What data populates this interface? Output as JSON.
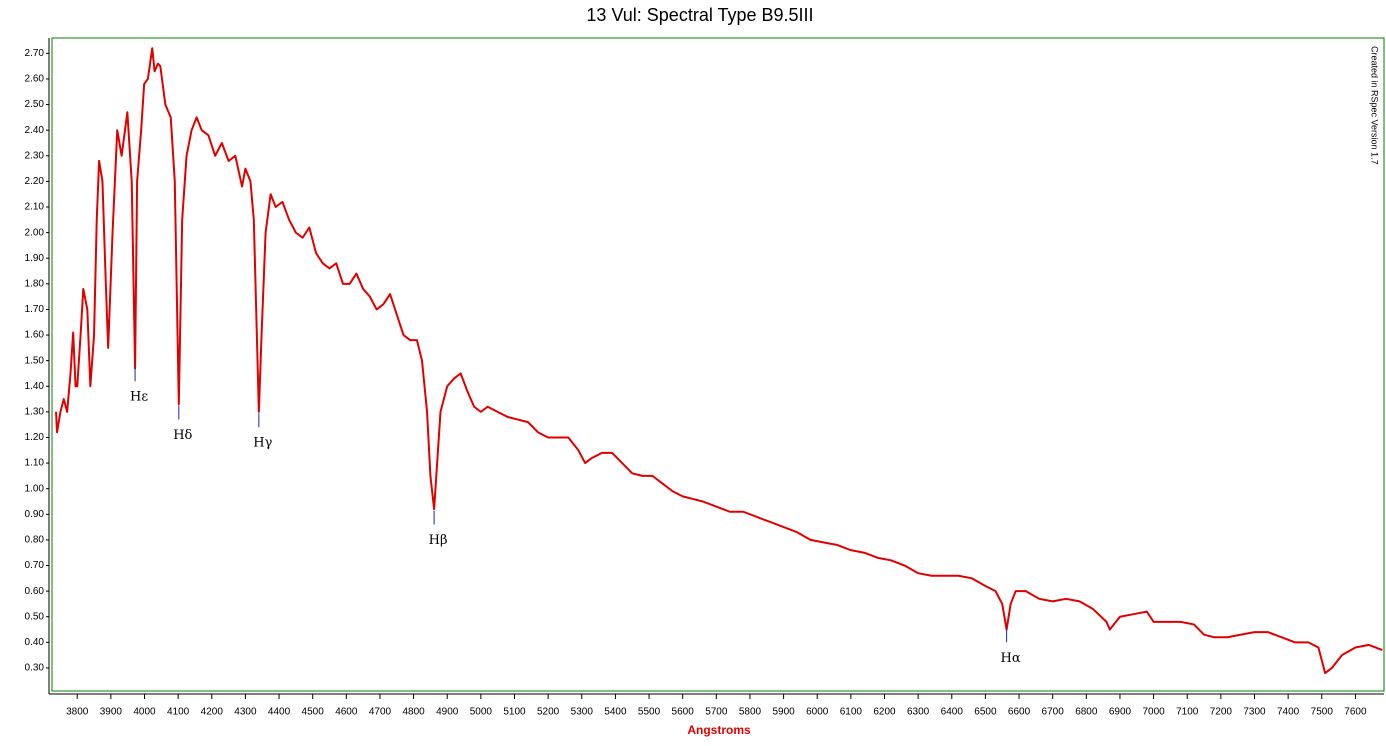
{
  "chart_data": {
    "type": "line",
    "title": "13 Vul: Spectral Type B9.5III",
    "x_label": "Angstroms",
    "watermark": "Created in RSpec Version 1.7",
    "color": "#e00000",
    "grid": false,
    "xlim": [
      3725,
      7685
    ],
    "ylim": [
      0.21,
      2.76
    ],
    "xticks": [
      3800,
      3900,
      4000,
      4100,
      4200,
      4300,
      4400,
      4500,
      4600,
      4700,
      4800,
      4900,
      5000,
      5100,
      5200,
      5300,
      5400,
      5500,
      5600,
      5700,
      5800,
      5900,
      6000,
      6100,
      6200,
      6300,
      6400,
      6500,
      6600,
      6700,
      6800,
      6900,
      7000,
      7100,
      7200,
      7300,
      7400,
      7500,
      7600
    ],
    "yticks": [
      {
        "value": 0.3,
        "label": "0.30"
      },
      {
        "value": 0.4,
        "label": "0.40"
      },
      {
        "value": 0.5,
        "label": "0.50"
      },
      {
        "value": 0.6,
        "label": "0.60"
      },
      {
        "value": 0.7,
        "label": "0.70"
      },
      {
        "value": 0.8,
        "label": "0.80"
      },
      {
        "value": 0.9,
        "label": "0.90"
      },
      {
        "value": 1.0,
        "label": "1.00"
      },
      {
        "value": 1.1,
        "label": "1.10"
      },
      {
        "value": 1.2,
        "label": "1.20"
      },
      {
        "value": 1.3,
        "label": "1.30"
      },
      {
        "value": 1.4,
        "label": "1.40"
      },
      {
        "value": 1.5,
        "label": "1.50"
      },
      {
        "value": 1.6,
        "label": "1.60"
      },
      {
        "value": 1.7,
        "label": "1.70"
      },
      {
        "value": 1.8,
        "label": "1.80"
      },
      {
        "value": 1.9,
        "label": "1.90"
      },
      {
        "value": 2.0,
        "label": "2.00"
      },
      {
        "value": 2.1,
        "label": "2.10"
      },
      {
        "value": 2.2,
        "label": "2.20"
      },
      {
        "value": 2.3,
        "label": "2.30"
      },
      {
        "value": 2.4,
        "label": "2.40"
      },
      {
        "value": 2.5,
        "label": "2.50"
      },
      {
        "value": 2.6,
        "label": "2.60"
      },
      {
        "value": 2.7,
        "label": "2.70"
      }
    ],
    "x": [
      3737,
      3740,
      3750,
      3760,
      3770,
      3780,
      3788,
      3795,
      3800,
      3810,
      3818,
      3830,
      3839,
      3850,
      3858,
      3865,
      3875,
      3885,
      3892,
      3905,
      3919,
      3932,
      3942,
      3949,
      3962,
      3972,
      3978,
      3990,
      3999,
      4010,
      4023,
      4030,
      4040,
      4047,
      4062,
      4078,
      4090,
      4102,
      4112,
      4125,
      4140,
      4155,
      4170,
      4190,
      4210,
      4230,
      4250,
      4270,
      4290,
      4300,
      4315,
      4325,
      4334,
      4340,
      4348,
      4360,
      4375,
      4390,
      4410,
      4430,
      4450,
      4470,
      4490,
      4510,
      4530,
      4550,
      4570,
      4590,
      4610,
      4630,
      4650,
      4670,
      4690,
      4710,
      4730,
      4750,
      4770,
      4790,
      4810,
      4825,
      4840,
      4850,
      4861,
      4870,
      4880,
      4900,
      4920,
      4940,
      4960,
      4980,
      5000,
      5020,
      5050,
      5080,
      5110,
      5140,
      5170,
      5200,
      5230,
      5260,
      5290,
      5310,
      5330,
      5360,
      5390,
      5420,
      5450,
      5480,
      5510,
      5540,
      5570,
      5600,
      5630,
      5660,
      5700,
      5740,
      5780,
      5820,
      5860,
      5900,
      5940,
      5980,
      6020,
      6060,
      6100,
      6140,
      6180,
      6220,
      6260,
      6300,
      6340,
      6380,
      6420,
      6460,
      6500,
      6530,
      6550,
      6563,
      6575,
      6590,
      6620,
      6660,
      6700,
      6740,
      6780,
      6820,
      6860,
      6870,
      6900,
      6940,
      6980,
      7000,
      7040,
      7080,
      7120,
      7150,
      7180,
      7220,
      7260,
      7300,
      7340,
      7380,
      7420,
      7460,
      7490,
      7510,
      7530,
      7560,
      7600,
      7640,
      7680
    ],
    "values": [
      1.3,
      1.22,
      1.3,
      1.35,
      1.3,
      1.45,
      1.61,
      1.4,
      1.4,
      1.6,
      1.78,
      1.7,
      1.4,
      1.6,
      2.05,
      2.28,
      2.2,
      1.8,
      1.55,
      2.0,
      2.4,
      2.3,
      2.4,
      2.47,
      2.2,
      1.47,
      2.2,
      2.4,
      2.58,
      2.6,
      2.72,
      2.63,
      2.66,
      2.65,
      2.5,
      2.45,
      2.2,
      1.33,
      2.05,
      2.3,
      2.4,
      2.45,
      2.4,
      2.38,
      2.3,
      2.35,
      2.28,
      2.3,
      2.18,
      2.25,
      2.2,
      2.05,
      1.6,
      1.3,
      1.6,
      2.0,
      2.15,
      2.1,
      2.12,
      2.05,
      2.0,
      1.98,
      2.02,
      1.92,
      1.88,
      1.86,
      1.88,
      1.8,
      1.8,
      1.84,
      1.78,
      1.75,
      1.7,
      1.72,
      1.76,
      1.68,
      1.6,
      1.58,
      1.58,
      1.5,
      1.3,
      1.05,
      0.92,
      1.1,
      1.3,
      1.4,
      1.43,
      1.45,
      1.38,
      1.32,
      1.3,
      1.32,
      1.3,
      1.28,
      1.27,
      1.26,
      1.22,
      1.2,
      1.2,
      1.2,
      1.15,
      1.1,
      1.12,
      1.14,
      1.14,
      1.1,
      1.06,
      1.05,
      1.05,
      1.02,
      0.99,
      0.97,
      0.96,
      0.95,
      0.93,
      0.91,
      0.91,
      0.89,
      0.87,
      0.85,
      0.83,
      0.8,
      0.79,
      0.78,
      0.76,
      0.75,
      0.73,
      0.72,
      0.7,
      0.67,
      0.66,
      0.66,
      0.66,
      0.65,
      0.62,
      0.6,
      0.55,
      0.45,
      0.55,
      0.6,
      0.6,
      0.57,
      0.56,
      0.57,
      0.56,
      0.53,
      0.48,
      0.45,
      0.5,
      0.51,
      0.52,
      0.48,
      0.48,
      0.48,
      0.47,
      0.43,
      0.42,
      0.42,
      0.43,
      0.44,
      0.44,
      0.42,
      0.4,
      0.4,
      0.38,
      0.28,
      0.3,
      0.35,
      0.38,
      0.39,
      0.37
    ],
    "annotations": [
      {
        "text": "Hε",
        "x": 3972,
        "y": 1.42
      },
      {
        "text": "Hδ",
        "x": 4102,
        "y": 1.27
      },
      {
        "text": "Hγ",
        "x": 4340,
        "y": 1.24
      },
      {
        "text": "Hβ",
        "x": 4861,
        "y": 0.86
      },
      {
        "text": "Hα",
        "x": 6563,
        "y": 0.4
      }
    ]
  }
}
